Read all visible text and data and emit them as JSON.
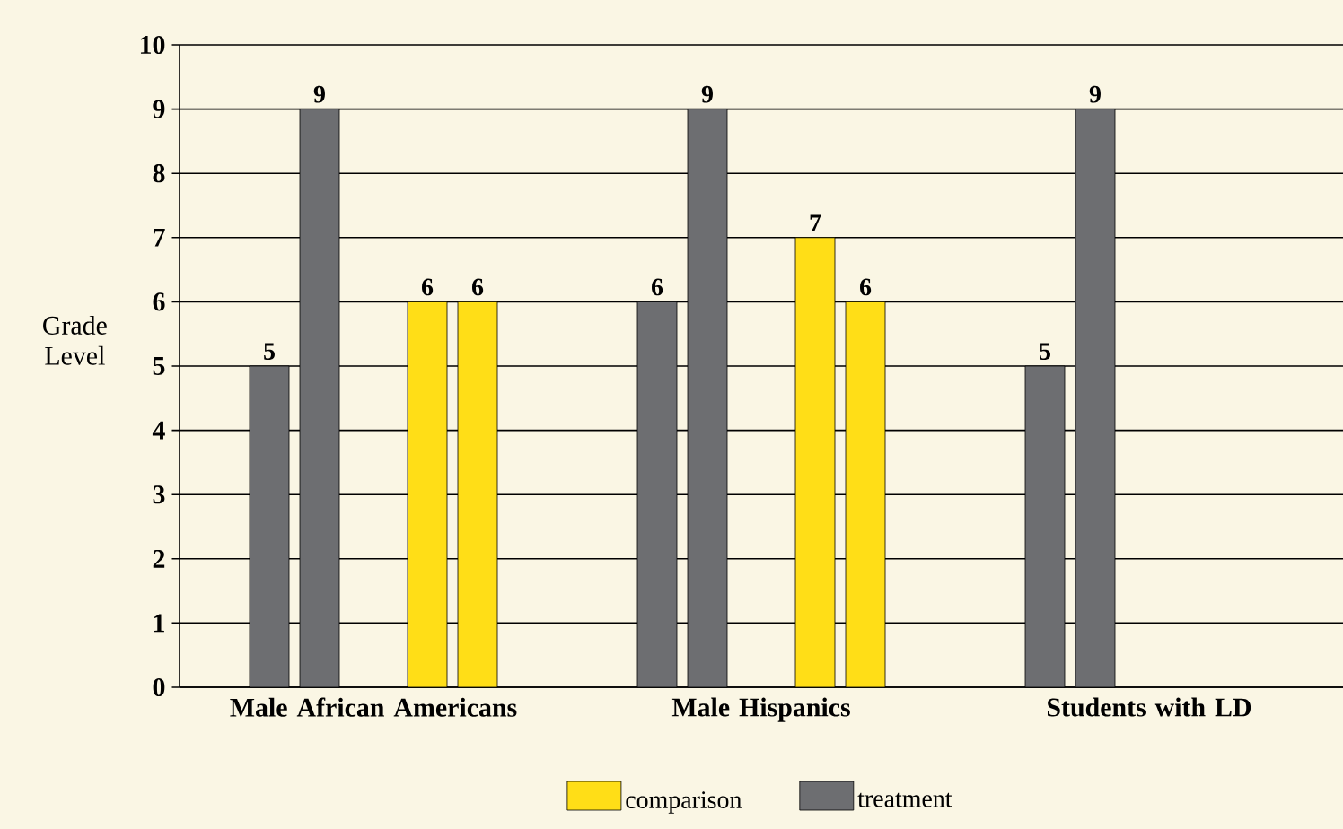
{
  "chart_data": {
    "type": "bar",
    "ylabel": "Grade Level",
    "categories": [
      "Male African Americans",
      "Male Hispanics",
      "Students with LD"
    ],
    "series": [
      {
        "name": "treatment",
        "color": "#6d6e71",
        "values": [
          5,
          6,
          5
        ]
      },
      {
        "color": "#6d6e71",
        "values": [
          9,
          9,
          9
        ]
      },
      {
        "name": "comparison",
        "color": "#ffde17",
        "values": [
          6,
          7,
          null
        ]
      },
      {
        "color": "#ffde17",
        "values": [
          6,
          6,
          null
        ]
      }
    ],
    "ylim": [
      0,
      10
    ],
    "yticks": [
      0,
      1,
      2,
      3,
      4,
      5,
      6,
      7,
      8,
      9,
      10
    ],
    "grid": "y",
    "data_labels": true,
    "legend": "bottom"
  }
}
